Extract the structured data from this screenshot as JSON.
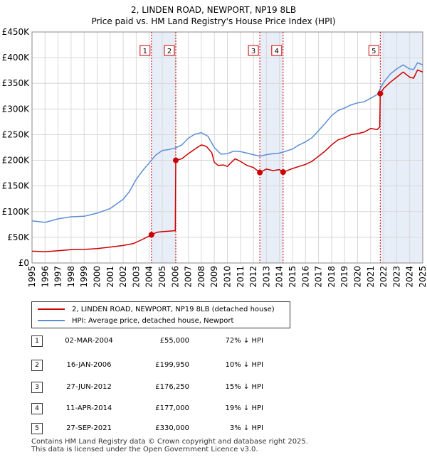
{
  "chart_data": {
    "type": "line",
    "title": "2, LINDEN ROAD, NEWPORT, NP19 8LB",
    "subtitle": "Price paid vs. HM Land Registry's House Price Index (HPI)",
    "xlabel": "",
    "ylabel": "",
    "xlim": [
      1995,
      2025
    ],
    "ylim": [
      0,
      450000
    ],
    "x_ticks": [
      "1995",
      "1996",
      "1997",
      "1998",
      "1999",
      "2000",
      "2001",
      "2002",
      "2003",
      "2004",
      "2005",
      "2006",
      "2007",
      "2008",
      "2009",
      "2010",
      "2011",
      "2012",
      "2013",
      "2014",
      "2015",
      "2016",
      "2017",
      "2018",
      "2019",
      "2020",
      "2021",
      "2022",
      "2023",
      "2024",
      "2025"
    ],
    "y_ticks": [
      {
        "value": 0,
        "label": "£0"
      },
      {
        "value": 50000,
        "label": "£50K"
      },
      {
        "value": 100000,
        "label": "£100K"
      },
      {
        "value": 150000,
        "label": "£150K"
      },
      {
        "value": 200000,
        "label": "£200K"
      },
      {
        "value": 250000,
        "label": "£250K"
      },
      {
        "value": 300000,
        "label": "£300K"
      },
      {
        "value": 350000,
        "label": "£350K"
      },
      {
        "value": 400000,
        "label": "£400K"
      },
      {
        "value": 450000,
        "label": "£450K"
      }
    ],
    "grid": true,
    "series": [
      {
        "name": "2, LINDEN ROAD, NEWPORT, NP19 8LB (detached house)",
        "color": "#cc0000",
        "points": [
          [
            1995.0,
            23000
          ],
          [
            1996.0,
            22000
          ],
          [
            1997.0,
            24000
          ],
          [
            1998.0,
            26000
          ],
          [
            1999.0,
            26500
          ],
          [
            2000.0,
            28000
          ],
          [
            2001.0,
            31000
          ],
          [
            2002.0,
            34000
          ],
          [
            2002.8,
            38000
          ],
          [
            2003.4,
            45000
          ],
          [
            2003.8,
            50000
          ],
          [
            2004.17,
            55000
          ],
          [
            2004.6,
            60000
          ],
          [
            2005.0,
            61000
          ],
          [
            2005.5,
            62000
          ],
          [
            2006.0,
            63000
          ],
          [
            2006.04,
            199950
          ],
          [
            2006.5,
            203000
          ],
          [
            2007.0,
            213000
          ],
          [
            2007.5,
            222000
          ],
          [
            2008.0,
            230000
          ],
          [
            2008.4,
            227000
          ],
          [
            2008.8,
            215000
          ],
          [
            2009.0,
            196000
          ],
          [
            2009.3,
            190000
          ],
          [
            2009.7,
            191000
          ],
          [
            2010.0,
            188000
          ],
          [
            2010.3,
            196000
          ],
          [
            2010.6,
            203000
          ],
          [
            2011.0,
            198000
          ],
          [
            2011.5,
            190000
          ],
          [
            2012.0,
            186000
          ],
          [
            2012.49,
            176250
          ],
          [
            2013.0,
            183000
          ],
          [
            2013.5,
            180000
          ],
          [
            2014.0,
            182000
          ],
          [
            2014.28,
            177000
          ],
          [
            2014.6,
            180000
          ],
          [
            2015.0,
            184000
          ],
          [
            2015.5,
            188000
          ],
          [
            2016.0,
            192000
          ],
          [
            2016.5,
            198000
          ],
          [
            2017.0,
            208000
          ],
          [
            2017.5,
            218000
          ],
          [
            2018.0,
            230000
          ],
          [
            2018.5,
            240000
          ],
          [
            2019.0,
            244000
          ],
          [
            2019.5,
            250000
          ],
          [
            2020.0,
            252000
          ],
          [
            2020.5,
            255000
          ],
          [
            2021.0,
            262000
          ],
          [
            2021.5,
            260000
          ],
          [
            2021.7,
            265000
          ],
          [
            2021.74,
            330000
          ],
          [
            2022.0,
            340000
          ],
          [
            2022.5,
            352000
          ],
          [
            2023.0,
            362000
          ],
          [
            2023.5,
            372000
          ],
          [
            2023.8,
            366000
          ],
          [
            2024.0,
            362000
          ],
          [
            2024.3,
            360000
          ],
          [
            2024.6,
            376000
          ],
          [
            2025.0,
            372000
          ]
        ]
      },
      {
        "name": "HPI: Average price, detached house, Newport",
        "color": "#5b8fd4",
        "points": [
          [
            1995.0,
            82000
          ],
          [
            1996.0,
            79000
          ],
          [
            1997.0,
            86000
          ],
          [
            1998.0,
            90000
          ],
          [
            1999.0,
            91000
          ],
          [
            2000.0,
            97000
          ],
          [
            2001.0,
            106000
          ],
          [
            2002.0,
            124000
          ],
          [
            2002.5,
            140000
          ],
          [
            2003.0,
            163000
          ],
          [
            2003.5,
            180000
          ],
          [
            2004.0,
            195000
          ],
          [
            2004.5,
            210000
          ],
          [
            2005.0,
            219000
          ],
          [
            2005.5,
            221000
          ],
          [
            2006.0,
            224000
          ],
          [
            2006.5,
            230000
          ],
          [
            2007.0,
            243000
          ],
          [
            2007.5,
            251000
          ],
          [
            2008.0,
            254000
          ],
          [
            2008.5,
            247000
          ],
          [
            2009.0,
            225000
          ],
          [
            2009.5,
            212000
          ],
          [
            2010.0,
            213000
          ],
          [
            2010.5,
            218000
          ],
          [
            2011.0,
            217000
          ],
          [
            2011.5,
            214000
          ],
          [
            2012.0,
            211000
          ],
          [
            2012.5,
            208000
          ],
          [
            2013.0,
            211000
          ],
          [
            2013.5,
            213000
          ],
          [
            2014.0,
            214000
          ],
          [
            2014.5,
            218000
          ],
          [
            2015.0,
            222000
          ],
          [
            2015.5,
            230000
          ],
          [
            2016.0,
            236000
          ],
          [
            2016.5,
            244000
          ],
          [
            2017.0,
            258000
          ],
          [
            2017.5,
            272000
          ],
          [
            2018.0,
            287000
          ],
          [
            2018.5,
            297000
          ],
          [
            2019.0,
            302000
          ],
          [
            2019.5,
            308000
          ],
          [
            2020.0,
            312000
          ],
          [
            2020.5,
            314000
          ],
          [
            2021.0,
            321000
          ],
          [
            2021.5,
            328000
          ],
          [
            2021.75,
            340000
          ],
          [
            2022.0,
            352000
          ],
          [
            2022.5,
            368000
          ],
          [
            2023.0,
            378000
          ],
          [
            2023.5,
            386000
          ],
          [
            2023.8,
            381000
          ],
          [
            2024.0,
            378000
          ],
          [
            2024.3,
            377000
          ],
          [
            2024.6,
            390000
          ],
          [
            2025.0,
            386000
          ]
        ]
      }
    ],
    "sales": [
      {
        "num": "1",
        "x": 2004.17,
        "price": 55000
      },
      {
        "num": "2",
        "x": 2006.04,
        "price": 199950
      },
      {
        "num": "3",
        "x": 2012.49,
        "price": 176250
      },
      {
        "num": "4",
        "x": 2014.28,
        "price": 177000
      },
      {
        "num": "5",
        "x": 2021.74,
        "price": 330000
      }
    ],
    "bands": [
      [
        2004.17,
        2006.04
      ],
      [
        2012.49,
        2014.28
      ],
      [
        2021.74,
        2025.0
      ]
    ]
  },
  "legend": {
    "property_label": "2, LINDEN ROAD, NEWPORT, NP19 8LB (detached house)",
    "hpi_label": "HPI: Average price, detached house, Newport",
    "property_color": "#cc0000",
    "hpi_color": "#5b8fd4"
  },
  "transactions": [
    {
      "num": "1",
      "date": "02-MAR-2004",
      "price": "£55,000",
      "hpi": "72% ↓ HPI"
    },
    {
      "num": "2",
      "date": "16-JAN-2006",
      "price": "£199,950",
      "hpi": "10% ↓ HPI"
    },
    {
      "num": "3",
      "date": "27-JUN-2012",
      "price": "£176,250",
      "hpi": "15% ↓ HPI"
    },
    {
      "num": "4",
      "date": "11-APR-2014",
      "price": "£177,000",
      "hpi": "19% ↓ HPI"
    },
    {
      "num": "5",
      "date": "27-SEP-2021",
      "price": "£330,000",
      "hpi": "3% ↓ HPI"
    }
  ],
  "footer": {
    "line1": "Contains HM Land Registry data © Crown copyright and database right 2025.",
    "line2": "This data is licensed under the Open Government Licence v3.0."
  }
}
